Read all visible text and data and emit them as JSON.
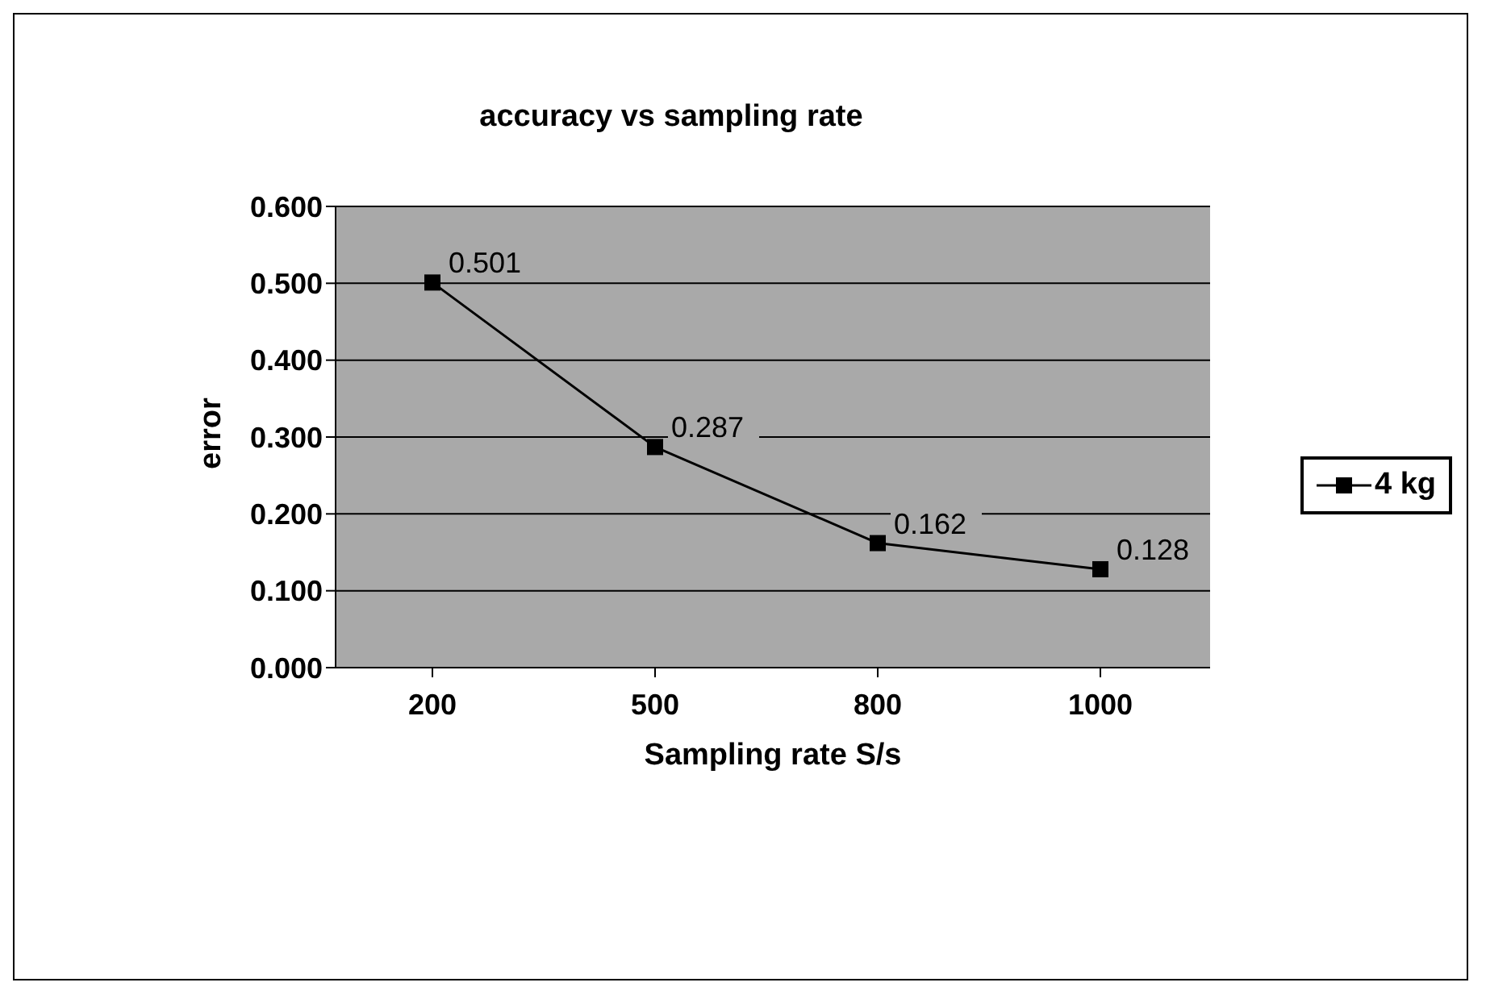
{
  "chart_data": {
    "type": "line",
    "title": "accuracy vs sampling rate",
    "xlabel": "Sampling rate S/s",
    "ylabel": "error",
    "categories": [
      "200",
      "500",
      "800",
      "1000"
    ],
    "series": [
      {
        "name": "4 kg",
        "color": "#000000",
        "values": [
          0.501,
          0.287,
          0.162,
          0.128
        ]
      }
    ],
    "ylim": [
      0,
      0.6
    ],
    "yticks": [
      {
        "value": 0,
        "label": "0.000"
      },
      {
        "value": 0.1,
        "label": "0.100"
      },
      {
        "value": 0.2,
        "label": "0.200"
      },
      {
        "value": 0.3,
        "label": "0.300"
      },
      {
        "value": 0.4,
        "label": "0.400"
      },
      {
        "value": 0.5,
        "label": "0.500"
      },
      {
        "value": 0.6,
        "label": "0.600"
      }
    ],
    "grid": "y",
    "legend": "right",
    "marker": "square",
    "line_style": "solid",
    "data_labels": true
  }
}
